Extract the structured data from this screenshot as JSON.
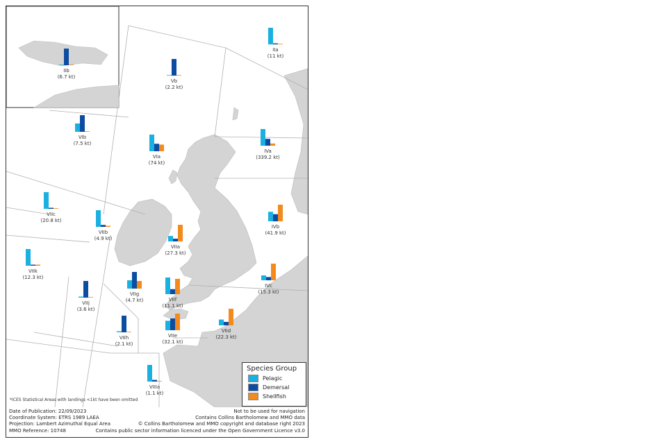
{
  "colors": {
    "pelagic": "#1ab0e0",
    "demersal": "#0d4da1",
    "shellfish": "#f28a1e",
    "land": "#d4d4d4",
    "sea": "#ffffff",
    "boundary": "#b0b0b0"
  },
  "areas": [
    {
      "code": "IIa",
      "total": "(11 kt)",
      "pelagic": 11,
      "demersal": 0.2,
      "shellfish": 0
    },
    {
      "code": "Vb",
      "total": "(2.2 kt)",
      "pelagic": 0,
      "demersal": 2.2,
      "shellfish": 0
    },
    {
      "code": "IIb",
      "total": "(6.7 kt)",
      "pelagic": 0,
      "demersal": 6.7,
      "shellfish": 0
    },
    {
      "code": "VIb",
      "total": "(7.5 kt)",
      "pelagic": 2.5,
      "demersal": 5.0,
      "shellfish": 0
    },
    {
      "code": "VIa",
      "total": "(74 kt)",
      "pelagic": 40,
      "demersal": 18,
      "shellfish": 16
    },
    {
      "code": "IVa",
      "total": "(339.2 kt)",
      "pelagic": 220,
      "demersal": 90,
      "shellfish": 29
    },
    {
      "code": "VIIc",
      "total": "(20.8 kt)",
      "pelagic": 20.6,
      "demersal": 0.2,
      "shellfish": 0
    },
    {
      "code": "VIIb",
      "total": "(4.9 kt)",
      "pelagic": 4.3,
      "demersal": 0.5,
      "shellfish": 0.1
    },
    {
      "code": "IVb",
      "total": "(41.9 kt)",
      "pelagic": 12,
      "demersal": 9,
      "shellfish": 21
    },
    {
      "code": "VIIa",
      "total": "(27.3 kt)",
      "pelagic": 6,
      "demersal": 3,
      "shellfish": 18.3
    },
    {
      "code": "VIIk",
      "total": "(12.3 kt)",
      "pelagic": 12,
      "demersal": 0.2,
      "shellfish": 0.1
    },
    {
      "code": "IVc",
      "total": "(15.3 kt)",
      "pelagic": 3,
      "demersal": 2,
      "shellfish": 10.3
    },
    {
      "code": "VIIg",
      "total": "(4.7 kt)",
      "pelagic": 1.2,
      "demersal": 2.4,
      "shellfish": 1.1
    },
    {
      "code": "VIIf",
      "total": "(11.1 kt)",
      "pelagic": 5,
      "demersal": 1.5,
      "shellfish": 4.6
    },
    {
      "code": "VIIj",
      "total": "(3.6 kt)",
      "pelagic": 0.2,
      "demersal": 3.4,
      "shellfish": 0
    },
    {
      "code": "VIIh",
      "total": "(2.1 kt)",
      "pelagic": 0.1,
      "demersal": 2.0,
      "shellfish": 0
    },
    {
      "code": "VIIe",
      "total": "(32.1 kt)",
      "pelagic": 8,
      "demersal": 10,
      "shellfish": 14.1
    },
    {
      "code": "VIId",
      "total": "(22.3 kt)",
      "pelagic": 5,
      "demersal": 3,
      "shellfish": 14.3
    },
    {
      "code": "VIIIa",
      "total": "(1.1 kt)",
      "pelagic": 1.0,
      "demersal": 0.1,
      "shellfish": 0
    }
  ],
  "legend": {
    "title": "Species Group",
    "items": [
      {
        "label": "Pelagic",
        "color": "#1ab0e0"
      },
      {
        "label": "Demersal",
        "color": "#0d4da1"
      },
      {
        "label": "Shellfish",
        "color": "#f28a1e"
      }
    ]
  },
  "footnote": "*ICES Statistical Areas with landings <1kt have been omitted",
  "info": {
    "left": [
      "Date of Publication: 22/09/2023",
      "Coordinate System: ETRS 1989 LAEA",
      "Projection: Lambert Azimuthal Equal Area",
      "MMO Reference: 10748"
    ],
    "right": [
      "Not to be used for navigation",
      "Contains Collins Bartholomew and MMO data",
      "© Collins Bartholomew and MMO copyright and database right 2023",
      "Contains public sector information licenced under the Open Government Licence v3.0"
    ]
  }
}
